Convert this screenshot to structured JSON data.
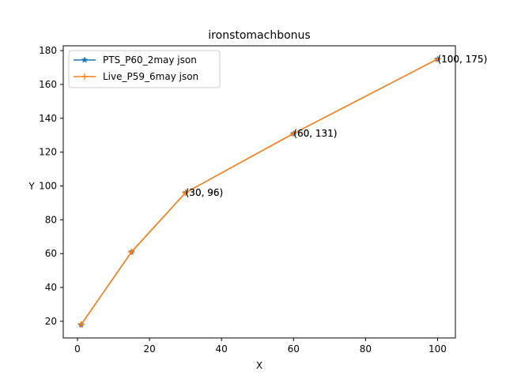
{
  "chart_data": {
    "type": "line",
    "title": "ironstomachbonus",
    "xlabel": "X",
    "ylabel": "Y",
    "xlim": [
      -3.95,
      104.95
    ],
    "ylim": [
      10.15,
      182.85
    ],
    "xticks": [
      0,
      20,
      40,
      60,
      80,
      100
    ],
    "yticks": [
      20,
      40,
      60,
      80,
      100,
      120,
      140,
      160,
      180
    ],
    "grid": false,
    "legend_position": "upper-left",
    "series": [
      {
        "name": "PTS_P60_2may json",
        "color": "#1f77b4",
        "marker": "star",
        "x": [
          1,
          15,
          30,
          60,
          100
        ],
        "y": [
          18,
          61,
          96,
          131,
          175
        ]
      },
      {
        "name": "Live_P59_6may json",
        "color": "#ff7f0e",
        "marker": "plus",
        "x": [
          1,
          15,
          30,
          60,
          100
        ],
        "y": [
          18,
          61,
          96,
          131,
          175
        ]
      }
    ],
    "annotations": [
      {
        "text": "(30, 96)",
        "x": 30,
        "y": 96
      },
      {
        "text": "(60, 131)",
        "x": 60,
        "y": 131
      },
      {
        "text": "(100, 175)",
        "x": 100,
        "y": 175
      }
    ]
  }
}
